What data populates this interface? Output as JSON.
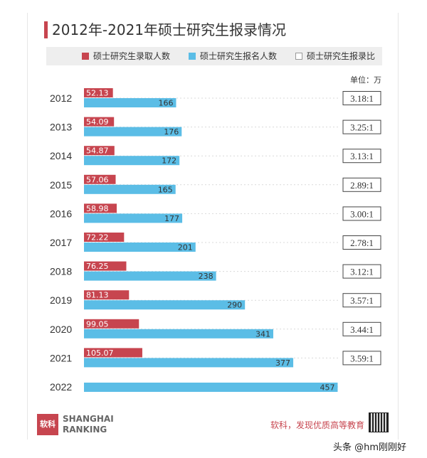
{
  "title": "2012年-2021年硕士研究生报录情况",
  "legend": {
    "admitted": "硕士研究生录取人数",
    "applicants": "硕士研究生报名人数",
    "ratio": "硕士研究生报录比"
  },
  "unit_label": "单位：万",
  "colors": {
    "admitted": "#c7454f",
    "applicants": "#5bbde6",
    "accent": "#c7454f"
  },
  "footer": {
    "logo_mark": "软科",
    "logo_line1": "SHANGHAI",
    "logo_line2": "RANKING",
    "slogan": "软科，发现优质高等教育",
    "watermark": "头条 @hm刚刚好"
  },
  "chart_data": {
    "type": "bar",
    "orientation": "horizontal",
    "title": "2012年-2021年硕士研究生报录情况",
    "categories": [
      "2012",
      "2013",
      "2014",
      "2015",
      "2016",
      "2017",
      "2018",
      "2019",
      "2020",
      "2021",
      "2022"
    ],
    "series": [
      {
        "name": "硕士研究生录取人数",
        "values": [
          52.13,
          54.09,
          54.87,
          57.06,
          58.98,
          72.22,
          76.25,
          81.13,
          99.05,
          105.07,
          null
        ],
        "labels": [
          "52.13",
          "54.09",
          "54.87",
          "57.06",
          "58.98",
          "72.22",
          "76.25",
          "81.13",
          "99.05",
          "105.07",
          ""
        ]
      },
      {
        "name": "硕士研究生报名人数",
        "values": [
          166,
          176,
          172,
          165,
          177,
          201,
          238,
          290,
          341,
          377,
          457
        ],
        "labels": [
          "166",
          "176",
          "172",
          "165",
          "177",
          "201",
          "238",
          "290",
          "341",
          "377",
          "457"
        ]
      },
      {
        "name": "硕士研究生报录比",
        "values": [
          3.18,
          3.25,
          3.13,
          2.89,
          3.0,
          2.78,
          3.12,
          3.57,
          3.44,
          3.59,
          null
        ],
        "labels": [
          "3.18:1",
          "3.25:1",
          "3.13:1",
          "2.89:1",
          "3.00:1",
          "2.78:1",
          "3.12:1",
          "3.57:1",
          "3.44:1",
          "3.59:1",
          ""
        ]
      }
    ],
    "unit": "万",
    "legend_position": "top",
    "grid": false
  }
}
